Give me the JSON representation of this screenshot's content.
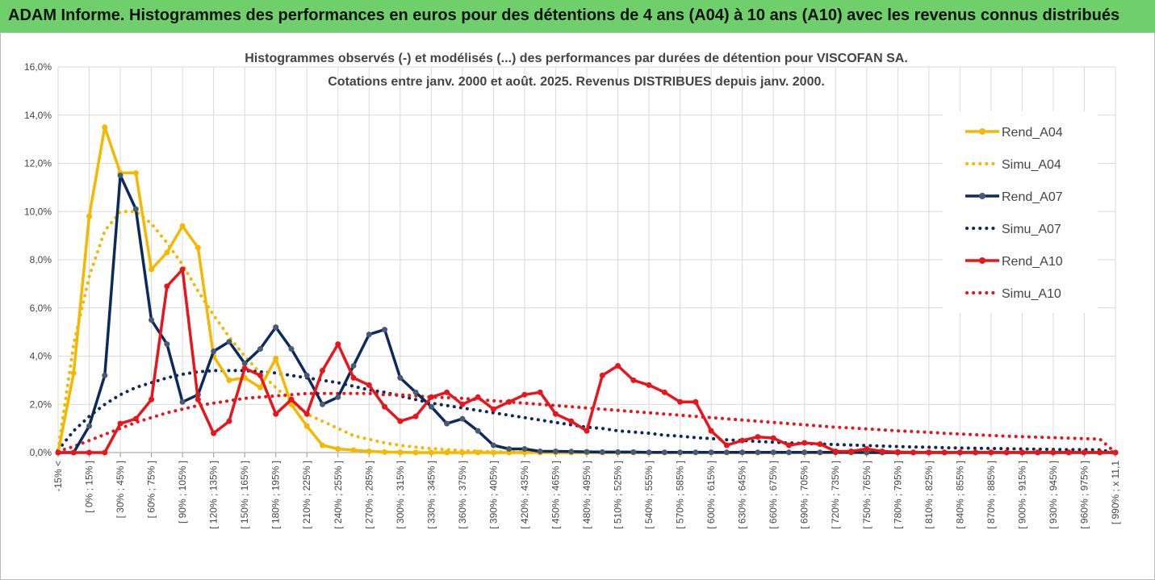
{
  "header": {
    "title": "ADAM Informe. Histogrammes des performances en euros pour des détentions de 4 ans (A04) à 10 ans (A10) avec les revenus connus distribués"
  },
  "chart_data": {
    "type": "line",
    "title_line1": "Histogrammes observés (-) et modélisés (...) des performances par durées de détention pour VISCOFAN SA.",
    "title_line2": "Cotations entre janv. 2000 et août. 2025. Revenus DISTRIBUES depuis janv. 2000.",
    "ylim": [
      0,
      16
    ],
    "y_ticks": [
      "0,0%",
      "2,0%",
      "4,0%",
      "6,0%",
      "8,0%",
      "10,0%",
      "12,0%",
      "14,0%",
      "16,0%"
    ],
    "grid": true,
    "legend_position": "right",
    "category_labels": [
      "-15% <",
      "[ 0% ; 15% ]",
      "[ 30% ; 45% ]",
      "[ 60% ; 75% ]",
      "[ 90% ; 105% ]",
      "[ 120% ; 135% ]",
      "[ 150% ; 165% ]",
      "[ 180% ; 195% ]",
      "[ 210% ; 225% ]",
      "[ 240% ; 255% ]",
      "[ 270% ; 285% ]",
      "[ 300% ; 315% ]",
      "[ 330% ; 345% ]",
      "[ 360% ; 375% ]",
      "[ 390% ; 405% ]",
      "[ 420% ; 435% ]",
      "[ 450% ; 465% ]",
      "[ 480% ; 495% ]",
      "[ 510% ; 525% ]",
      "[ 540% ; 555% ]",
      "[ 570% ; 585% ]",
      "[ 600% ; 615% ]",
      "[ 630% ; 645% ]",
      "[ 660% ; 675% ]",
      "[ 690% ; 705% ]",
      "[ 720% ; 735% ]",
      "[ 750% ; 765% ]",
      "[ 780% ; 795% ]",
      "[ 810% ; 825% ]",
      "[ 840% ; 855% ]",
      "[ 870% ; 885% ]",
      "[ 900% ; 915% ]",
      "[ 930% ; 945% ]",
      "[ 960% ; 975% ]",
      "[ 990% ; x 11,1"
    ],
    "series": [
      {
        "name": "Rend_A04",
        "color": "#f5b800",
        "style": "solid",
        "values": [
          0.0,
          3.3,
          9.8,
          13.5,
          11.6,
          11.6,
          7.6,
          8.3,
          9.4,
          8.5,
          4.0,
          3.0,
          3.1,
          2.7,
          3.9,
          2.0,
          1.1,
          0.3,
          0.15,
          0.1,
          0.05,
          0.02,
          0.01,
          0,
          0,
          0,
          0,
          0,
          0,
          0,
          0,
          0,
          0,
          0,
          0,
          0,
          0,
          0,
          0,
          0,
          0,
          0,
          0,
          0,
          0,
          0,
          0,
          0,
          0,
          0,
          0,
          0,
          0,
          0,
          0,
          0,
          0,
          0,
          0,
          0,
          0,
          0,
          0,
          0,
          0,
          0,
          0,
          0,
          0
        ]
      },
      {
        "name": "Simu_A04",
        "color": "#f5b800",
        "style": "dotted",
        "values": [
          0.1,
          4.5,
          7.3,
          9.2,
          10.0,
          10.0,
          9.5,
          8.7,
          7.8,
          6.7,
          5.7,
          4.8,
          4.0,
          3.3,
          2.7,
          2.1,
          1.6,
          1.3,
          1.0,
          0.7,
          0.55,
          0.4,
          0.3,
          0.22,
          0.16,
          0.12,
          0.08,
          0.06,
          0.04,
          0.03,
          0.02,
          0.01,
          0,
          0,
          0,
          0,
          0,
          0,
          0,
          0,
          0,
          0,
          0,
          0,
          0,
          0,
          0,
          0,
          0,
          0,
          0,
          0,
          0,
          0,
          0,
          0,
          0,
          0,
          0,
          0,
          0,
          0,
          0,
          0,
          0,
          0,
          0,
          0,
          0
        ]
      },
      {
        "name": "Rend_A07",
        "color": "#0d2a5c",
        "style": "solid",
        "values": [
          0.0,
          0.0,
          1.1,
          3.2,
          11.5,
          10.1,
          5.5,
          4.5,
          2.1,
          2.4,
          4.2,
          4.6,
          3.7,
          4.3,
          5.2,
          4.3,
          3.2,
          2.0,
          2.3,
          3.6,
          4.9,
          5.1,
          3.1,
          2.5,
          1.9,
          1.2,
          1.4,
          0.9,
          0.3,
          0.15,
          0.15,
          0.05,
          0.05,
          0.04,
          0.03,
          0.02,
          0.02,
          0.02,
          0.01,
          0.01,
          0.01,
          0.01,
          0.01,
          0.01,
          0.01,
          0.01,
          0.01,
          0.01,
          0.01,
          0.01,
          0.01,
          0.01,
          0,
          0,
          0,
          0,
          0,
          0,
          0,
          0,
          0,
          0,
          0,
          0,
          0,
          0,
          0,
          0,
          0
        ]
      },
      {
        "name": "Simu_A07",
        "color": "#0d2a5c",
        "style": "dotted",
        "values": [
          0.1,
          0.9,
          1.5,
          2.0,
          2.4,
          2.7,
          2.9,
          3.1,
          3.25,
          3.35,
          3.4,
          3.4,
          3.4,
          3.35,
          3.3,
          3.2,
          3.1,
          3.0,
          2.9,
          2.75,
          2.6,
          2.5,
          2.35,
          2.2,
          2.05,
          1.95,
          1.85,
          1.75,
          1.65,
          1.55,
          1.45,
          1.35,
          1.25,
          1.15,
          1.05,
          1.0,
          0.9,
          0.85,
          0.8,
          0.72,
          0.68,
          0.62,
          0.58,
          0.53,
          0.5,
          0.46,
          0.43,
          0.4,
          0.37,
          0.35,
          0.33,
          0.31,
          0.29,
          0.27,
          0.25,
          0.23,
          0.22,
          0.2,
          0.19,
          0.18,
          0.17,
          0.16,
          0.15,
          0.14,
          0.13,
          0.12,
          0.12,
          0.11,
          0.0
        ]
      },
      {
        "name": "Rend_A10",
        "color": "#e8151c",
        "style": "solid",
        "values": [
          0.0,
          0.0,
          0.0,
          0.0,
          1.2,
          1.4,
          2.2,
          6.9,
          7.6,
          2.2,
          0.8,
          1.3,
          3.5,
          3.2,
          1.6,
          2.2,
          1.6,
          3.4,
          4.5,
          3.1,
          2.8,
          1.9,
          1.3,
          1.5,
          2.3,
          2.5,
          2.0,
          2.3,
          1.8,
          2.1,
          2.4,
          2.5,
          1.6,
          1.3,
          0.9,
          3.2,
          3.6,
          3.0,
          2.8,
          2.5,
          2.1,
          2.1,
          0.9,
          0.3,
          0.5,
          0.65,
          0.6,
          0.3,
          0.4,
          0.35,
          0.05,
          0.05,
          0.15,
          0.05,
          0.02,
          0.01,
          0.01,
          0.01,
          0.01,
          0.01,
          0.01,
          0.01,
          0.01,
          0.01,
          0.01,
          0.01,
          0.01,
          0.01,
          0.0
        ]
      },
      {
        "name": "Simu_A10",
        "color": "#e8151c",
        "style": "dotted",
        "values": [
          0.05,
          0.25,
          0.5,
          0.75,
          1.0,
          1.25,
          1.45,
          1.65,
          1.8,
          1.95,
          2.05,
          2.15,
          2.25,
          2.3,
          2.35,
          2.4,
          2.45,
          2.45,
          2.45,
          2.45,
          2.45,
          2.4,
          2.4,
          2.35,
          2.3,
          2.28,
          2.25,
          2.2,
          2.15,
          2.1,
          2.05,
          2.0,
          1.95,
          1.9,
          1.85,
          1.8,
          1.75,
          1.7,
          1.65,
          1.6,
          1.55,
          1.5,
          1.45,
          1.4,
          1.35,
          1.3,
          1.25,
          1.2,
          1.15,
          1.1,
          1.05,
          1.02,
          0.98,
          0.94,
          0.9,
          0.87,
          0.84,
          0.8,
          0.77,
          0.74,
          0.71,
          0.68,
          0.66,
          0.64,
          0.62,
          0.6,
          0.58,
          0.56,
          0.0
        ]
      }
    ]
  }
}
